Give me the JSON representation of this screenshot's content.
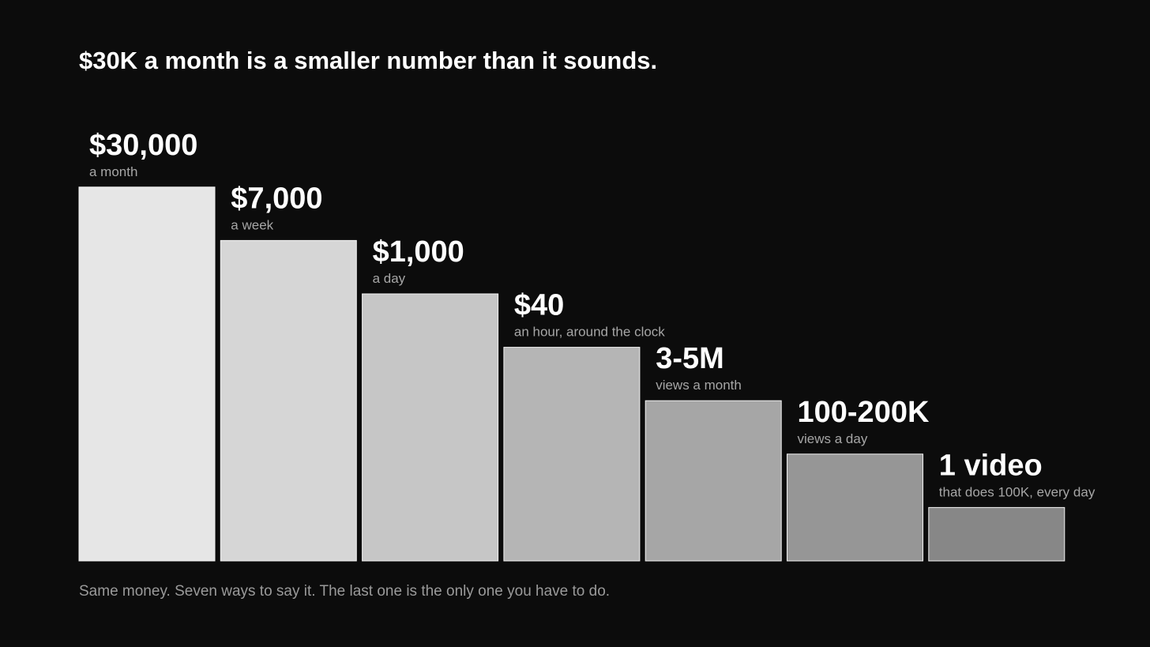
{
  "title": "$30K a month is a smaller number than it sounds.",
  "footnote": "Same money. Seven ways to say it. The last one is the only one you have to do.",
  "chart_data": {
    "type": "bar",
    "categories": [
      "$30,000",
      "$7,000",
      "$1,000",
      "$40",
      "3-5M",
      "100-200K",
      "1 video"
    ],
    "sublabels": [
      "a month",
      "a week",
      "a day",
      "an hour, around the clock",
      "views a month",
      "views a day",
      "that does 100K, every day"
    ],
    "values": [
      7,
      6,
      5,
      4,
      3,
      2,
      1
    ],
    "ylim": [
      0,
      7
    ],
    "grid": false,
    "legend": "none",
    "colors": [
      "#e6e6e6",
      "#d6d6d6",
      "#c6c6c6",
      "#b5b5b5",
      "#a6a6a6",
      "#969696",
      "#878787"
    ],
    "stroke_color": "#f2f2f2",
    "background_color": "#0c0c0c"
  }
}
